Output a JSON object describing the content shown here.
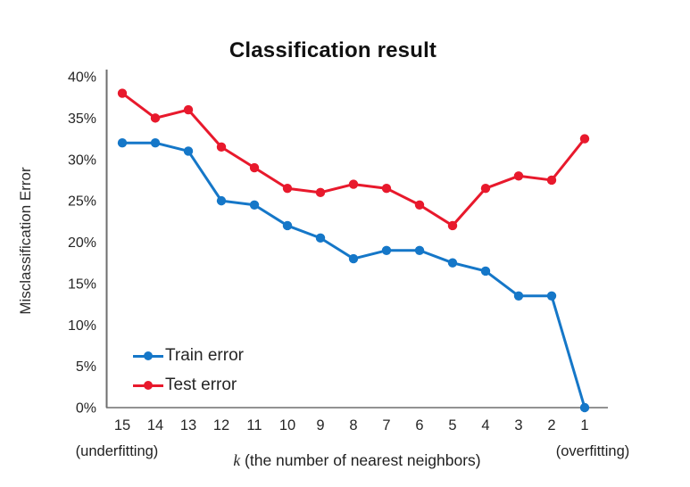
{
  "title": "Classification result",
  "axes": {
    "y_label": "Misclassification Error",
    "x_label_prefix": "k",
    "x_label_rest": " (the number of nearest neighbors)",
    "left_annotation": "(underfitting)",
    "right_annotation": "(overfitting)"
  },
  "chart_data": {
    "type": "line",
    "title": "Classification result",
    "xlabel": "k (the number of nearest neighbors)",
    "ylabel": "Misclassification Error",
    "categories": [
      15,
      14,
      13,
      12,
      11,
      10,
      9,
      8,
      7,
      6,
      5,
      4,
      3,
      2,
      1
    ],
    "x_tick_labels": [
      "15",
      "14",
      "13",
      "12",
      "11",
      "10",
      "9",
      "8",
      "7",
      "6",
      "5",
      "4",
      "3",
      "2",
      "1"
    ],
    "y_tick_labels": [
      "40%",
      "35%",
      "30%",
      "25%",
      "20%",
      "15%",
      "10%",
      "5%",
      "0%"
    ],
    "ylim": [
      0,
      40
    ],
    "y_unit": "percent",
    "grid": false,
    "legend_position": "inside-bottom-left",
    "annotations": [
      "(underfitting)",
      "(overfitting)"
    ],
    "series": [
      {
        "name": "Train error",
        "color": "#1577c8",
        "values": [
          32,
          32,
          31,
          25,
          24.5,
          22,
          20.5,
          18,
          19,
          19,
          17.5,
          16.5,
          13.5,
          13.5,
          0
        ]
      },
      {
        "name": "Test error",
        "color": "#e8192c",
        "values": [
          38,
          35,
          36,
          31.5,
          29,
          26.5,
          26,
          27,
          26.5,
          24.5,
          22,
          26.5,
          28,
          27.5,
          32.5
        ]
      }
    ]
  },
  "colors": {
    "axis_line": "#6e6e6e",
    "tick_text": "#262626",
    "title_text": "#111111"
  }
}
